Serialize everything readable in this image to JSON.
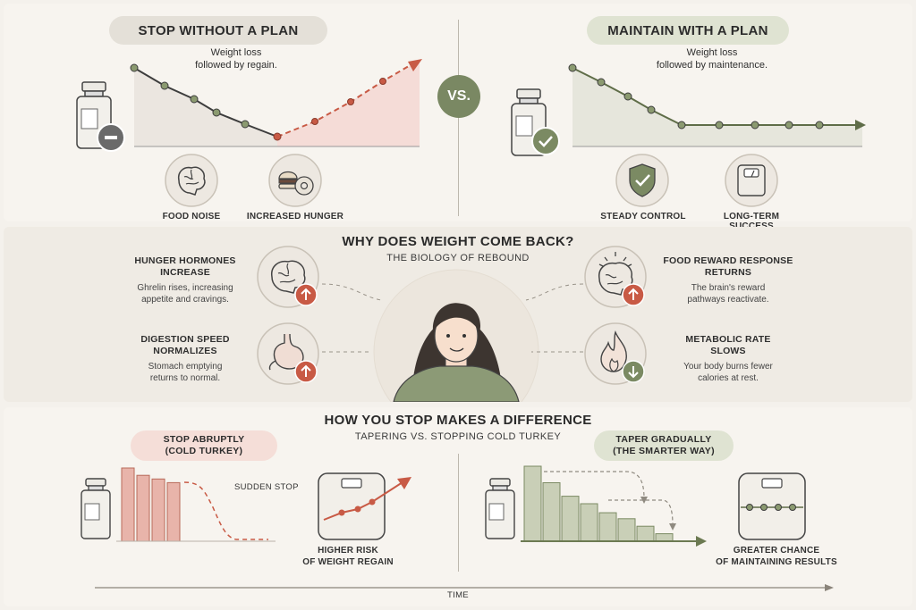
{
  "top": {
    "left": {
      "pill": "STOP WITHOUT A PLAN",
      "desc_line1": "Weight loss",
      "desc_line2": "followed by regain.",
      "icons": [
        {
          "name": "brain-icon",
          "label": "FOOD NOISE"
        },
        {
          "name": "burger-donut-icon",
          "label": "INCREASED HUNGER"
        }
      ]
    },
    "vs": "VS.",
    "right": {
      "pill": "MAINTAIN WITH A PLAN",
      "desc_line1": "Weight loss",
      "desc_line2": "followed by maintenance.",
      "icons": [
        {
          "name": "shield-check-icon",
          "label": "STEADY CONTROL"
        },
        {
          "name": "scale-icon",
          "label": "LONG-TERM SUCCESS"
        }
      ]
    }
  },
  "middle": {
    "title": "WHY DOES WEIGHT COME BACK?",
    "subtitle": "THE BIOLOGY OF REBOUND",
    "factors": [
      {
        "title_line1": "HUNGER HORMONES",
        "title_line2": "INCREASE",
        "text_line1": "Ghrelin rises, increasing",
        "text_line2": "appetite and cravings."
      },
      {
        "title_line1": "DIGESTION SPEED",
        "title_line2": "NORMALIZES",
        "text_line1": "Stomach emptying",
        "text_line2": "returns to normal."
      },
      {
        "title_line1": "FOOD REWARD RESPONSE",
        "title_line2": "RETURNS",
        "text_line1": "The brain's reward",
        "text_line2": "pathways reactivate."
      },
      {
        "title_line1": "METABOLIC RATE",
        "title_line2": "SLOWS",
        "text_line1": "Your body burns fewer",
        "text_line2": "calories at rest."
      }
    ]
  },
  "bottom": {
    "title": "HOW YOU STOP MAKES A DIFFERENCE",
    "subtitle": "TAPERING VS. STOPPING COLD TURKEY",
    "left": {
      "pill_line1": "STOP ABRUPTLY",
      "pill_line2": "(COLD TURKEY)",
      "annotation": "SUDDEN STOP",
      "result_line1": "HIGHER RISK",
      "result_line2": "OF WEIGHT REGAIN",
      "doses": [
        1.0,
        0.9,
        0.85,
        0.8
      ]
    },
    "right": {
      "pill_line1": "TAPER GRADUALLY",
      "pill_line2": "(THE SMARTER WAY)",
      "result_line1": "GREATER CHANCE",
      "result_line2": "OF MAINTAINING RESULTS",
      "doses": [
        1.0,
        0.78,
        0.6,
        0.5,
        0.38,
        0.3,
        0.2,
        0.1
      ]
    },
    "time_axis": "TIME"
  },
  "colors": {
    "green": "#7b8a63",
    "green_light": "#c9cfb7",
    "red": "#c85a45",
    "red_light": "#e8b4aa",
    "grey_dark": "#454545"
  }
}
